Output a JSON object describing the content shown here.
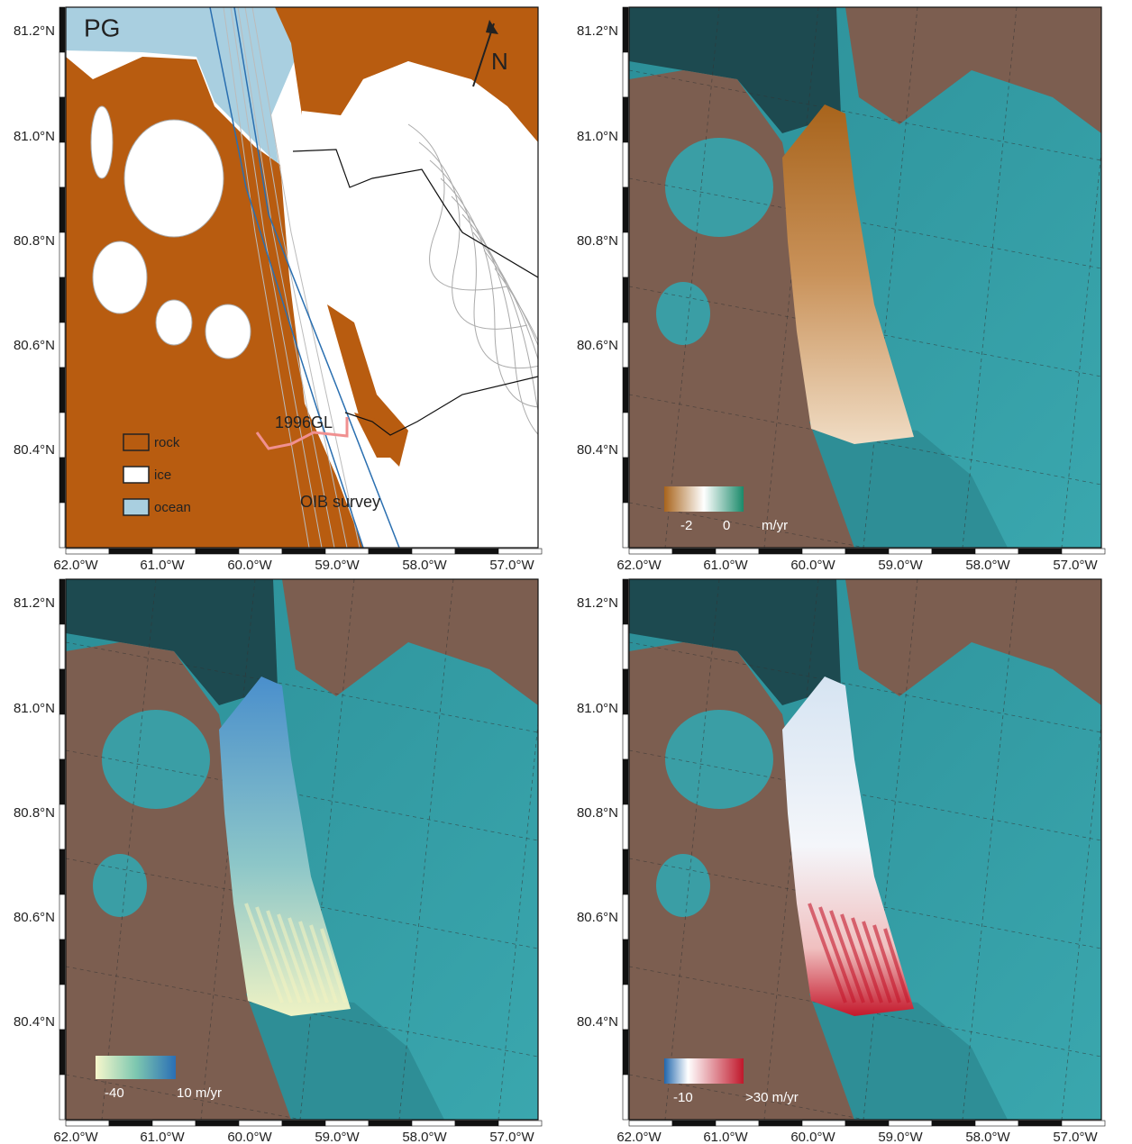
{
  "panels": [
    {
      "label": "PG",
      "north_arrow": "N",
      "annotations": [
        "1996GL",
        "OIB survey"
      ],
      "legend": [
        "rock",
        "ice",
        "ocean"
      ]
    },
    {
      "colorbar": [
        "-2",
        "0",
        "m/yr"
      ]
    },
    {
      "colorbar": [
        "-40",
        "10 m/yr"
      ]
    },
    {
      "colorbar": [
        "-10",
        ">30 m/yr"
      ]
    }
  ],
  "latitude_labels": [
    "81.2°N",
    "81.0°N",
    "80.8°N",
    "80.6°N",
    "80.4°N"
  ],
  "longitude_labels": [
    "62.0°W",
    "61.0°W",
    "60.0°W",
    "59.0°W",
    "58.0°W",
    "57.0°W"
  ]
}
